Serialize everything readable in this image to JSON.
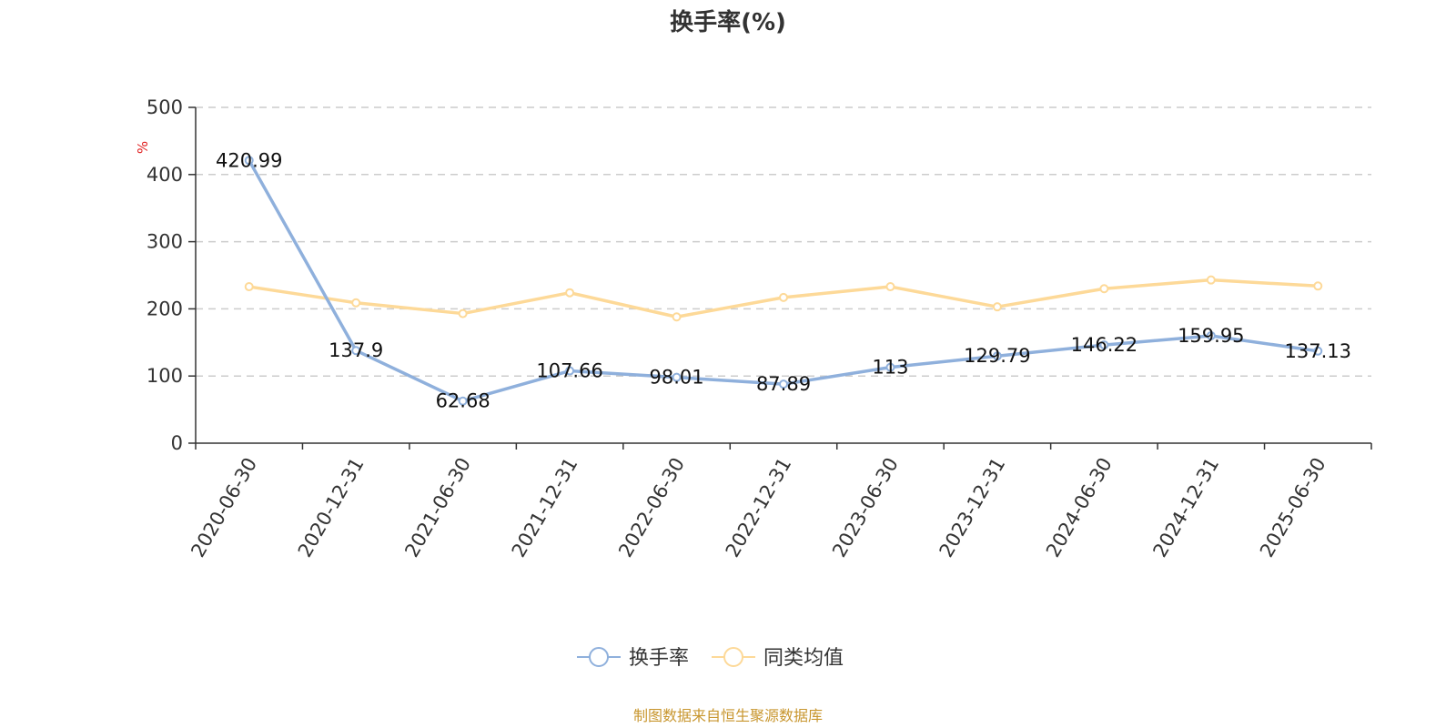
{
  "chart_data": {
    "type": "line",
    "title": "换手率(%)",
    "y_unit": "%",
    "categories": [
      "2020-06-30",
      "2020-12-31",
      "2021-06-30",
      "2021-12-31",
      "2022-06-30",
      "2022-12-31",
      "2023-06-30",
      "2023-12-31",
      "2024-06-30",
      "2024-12-31",
      "2025-06-30"
    ],
    "ylim": [
      0,
      500
    ],
    "y_ticks": [
      "0",
      "100",
      "200",
      "300",
      "400",
      "500"
    ],
    "grid": true,
    "legend_position": "bottom",
    "series": [
      {
        "name": "换手率",
        "color": "#8fb0dc",
        "values": [
          420.99,
          137.9,
          62.68,
          107.66,
          98.01,
          87.89,
          113,
          129.79,
          146.22,
          159.95,
          137.13
        ],
        "labels": [
          "420.99",
          "137.9",
          "62.68",
          "107.66",
          "98.01",
          "87.89",
          "113",
          "129.79",
          "146.22",
          "159.95",
          "137.13"
        ]
      },
      {
        "name": "同类均值",
        "color": "#fdd998",
        "values": [
          233,
          209,
          193,
          224,
          188,
          217,
          233,
          203,
          230,
          243,
          234
        ]
      }
    ],
    "source": "制图数据来自恒生聚源数据库",
    "colors": {
      "axis": "#333333",
      "grid": "#cccccc",
      "unit": "#e02020",
      "source": "#c8962e"
    }
  }
}
